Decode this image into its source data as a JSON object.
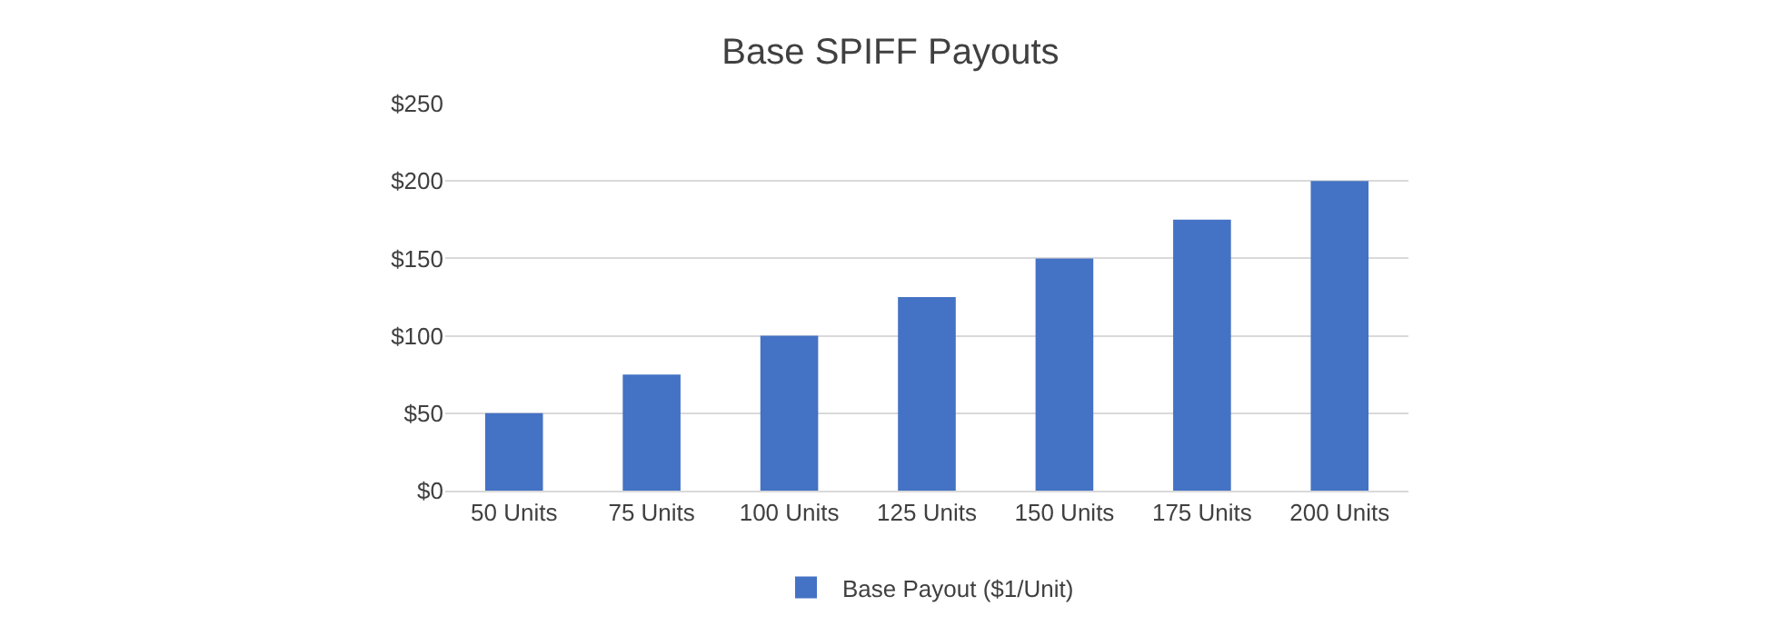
{
  "chart_data": {
    "type": "bar",
    "title": "Base SPIFF Payouts",
    "categories": [
      "50 Units",
      "75 Units",
      "100 Units",
      "125 Units",
      "150 Units",
      "175 Units",
      "200 Units"
    ],
    "series": [
      {
        "name": "Base Payout ($1/Unit)",
        "color": "#4472c4",
        "values": [
          50,
          75,
          100,
          125,
          150,
          175,
          200
        ]
      }
    ],
    "ylim": [
      0,
      250
    ],
    "yticks": [
      {
        "value": 0,
        "label": "$0"
      },
      {
        "value": 50,
        "label": "$50"
      },
      {
        "value": 100,
        "label": "$100"
      },
      {
        "value": 150,
        "label": "$150"
      },
      {
        "value": 200,
        "label": "$200"
      },
      {
        "value": 250,
        "label": "$250"
      }
    ],
    "grid": "y",
    "legend": "bottom"
  }
}
